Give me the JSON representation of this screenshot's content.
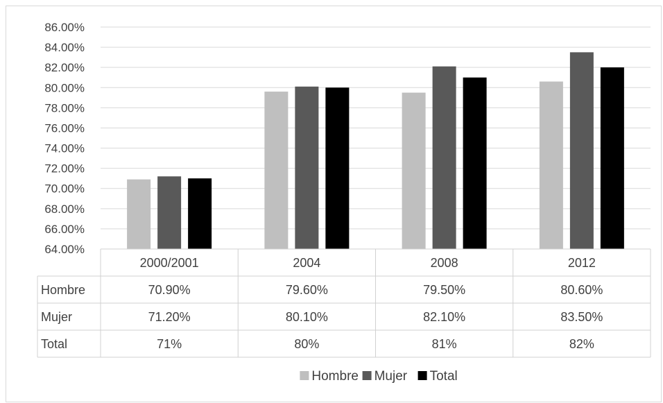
{
  "chart_data": {
    "type": "bar",
    "categories": [
      "2000/2001",
      "2004",
      "2008",
      "2012"
    ],
    "series": [
      {
        "name": "Hombre",
        "color": "#bfbfbf",
        "values": [
          70.9,
          79.6,
          79.5,
          80.6
        ]
      },
      {
        "name": "Mujer",
        "color": "#595959",
        "values": [
          71.2,
          80.1,
          82.1,
          83.5
        ]
      },
      {
        "name": "Total",
        "color": "#000000",
        "values": [
          71.0,
          80.0,
          81.0,
          82.0
        ]
      }
    ],
    "ylim": [
      64,
      86
    ],
    "y_ticks": [
      "64.00%",
      "66.00%",
      "68.00%",
      "70.00%",
      "72.00%",
      "74.00%",
      "76.00%",
      "78.00%",
      "80.00%",
      "82.00%",
      "84.00%",
      "86.00%"
    ],
    "table": [
      {
        "label": "Hombre",
        "cells": [
          "70.90%",
          "79.60%",
          "79.50%",
          "80.60%"
        ]
      },
      {
        "label": "Mujer",
        "cells": [
          "71.20%",
          "80.10%",
          "82.10%",
          "83.50%"
        ]
      },
      {
        "label": "Total",
        "cells": [
          "71%",
          "80%",
          "81%",
          "82%"
        ]
      }
    ],
    "grid": true,
    "legend_position": "bottom"
  }
}
